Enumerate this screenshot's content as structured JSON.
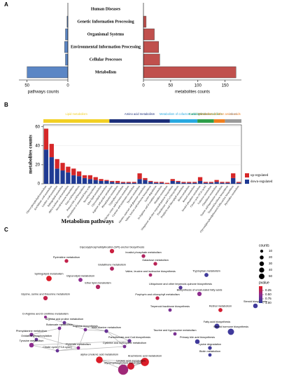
{
  "chart_data": [
    {
      "type": "mirror_bar",
      "panel": "A",
      "categories": [
        "Human Diseases",
        "Genetic Information Processing",
        "Organismal Systems",
        "Environmental Information Processing",
        "Cellular Processes",
        "Metabolism"
      ],
      "left": {
        "xlabel": "pathways counts",
        "values": [
          0,
          1,
          3,
          4,
          3,
          50
        ],
        "xlim": [
          60,
          0
        ],
        "xticks": [
          50,
          0
        ],
        "color": "#5b86c5"
      },
      "right": {
        "xlabel": "metabolites counts",
        "values": [
          0,
          5,
          20,
          28,
          30,
          170
        ],
        "xlim": [
          0,
          180
        ],
        "xticks": [
          0,
          50,
          100,
          150
        ],
        "color": "#c0504d"
      }
    },
    {
      "type": "grouped_stacked_bar",
      "panel": "B",
      "ylabel": "metabolites counts",
      "xlabel": "Metabolism pathways",
      "ylim": [
        0,
        62
      ],
      "yticks": [
        0,
        20,
        40,
        60
      ],
      "series": [
        {
          "name": "up-regulated",
          "color": "#d62728"
        },
        {
          "name": "down-regulated",
          "color": "#1f3a93"
        }
      ],
      "groups": [
        {
          "name": "Lipid metabolism",
          "color": "#f2d024",
          "categories": [
            "Glycerophospholipid metabolism",
            "Arachidonic acid metabolism",
            "Linoleic acid metabolism",
            "Sphingolipid metabolism",
            "alpha-Linolenic acid metabolism",
            "Steroid hormone biosynthesis",
            "Fatty acid biosynthesis",
            "Primary bile acid biosynthesis",
            "Biosynthesis of unsaturated fatty acids",
            "Steroid biosynthesis",
            "Ether lipid metabolism",
            "Glycerolipid metabolism"
          ],
          "up": [
            22,
            14,
            10,
            8,
            6,
            7,
            5,
            3,
            4,
            3,
            2,
            1
          ],
          "down": [
            36,
            28,
            16,
            14,
            12,
            9,
            8,
            6,
            5,
            4,
            3,
            3
          ]
        },
        {
          "name": "Amino acid metabolism",
          "color": "#1c2f7a",
          "categories": [
            "Arginine and proline metabolism",
            "Phenylalanine metabolism",
            "Tryptophan metabolism",
            "Glycine, serine and threonine metabolism",
            "Cysteine and methionine metabolism",
            "Tyrosine metabolism",
            "Alanine, aspartate and glutamate metabolism",
            "Valine, leucine and isoleucine biosynthesis",
            "Lysine degradation",
            "D-Arginine and D-ornithine metabolism",
            "Histidine metabolism"
          ],
          "up": [
            1,
            2,
            1,
            1,
            1,
            6,
            2,
            1,
            1,
            1,
            1
          ],
          "down": [
            2,
            1,
            1,
            1,
            1,
            5,
            4,
            2,
            1,
            1,
            0
          ]
        },
        {
          "name": "Metabolism of cofactors and vitamins",
          "color": "#29a9e0",
          "categories": [
            "Ubiquinone and other terpenoid-quinone biosynthesis",
            "Pantothenate and CoA biosynthesis",
            "Porphyrin and chlorophyll metabolism",
            "Biotin metabolism",
            "Retinol metabolism"
          ],
          "up": [
            2,
            1,
            1,
            1,
            1
          ],
          "down": [
            3,
            2,
            1,
            1,
            1
          ]
        },
        {
          "name": "Carbohydrate metabolism",
          "color": "#2e9e4a",
          "categories": [
            "Inositol phosphate metabolism",
            "Citrate cycle (TCA cycle)",
            "Galactose metabolism"
          ],
          "up": [
            4,
            1,
            1
          ],
          "down": [
            3,
            1,
            1
          ]
        },
        {
          "name": "Metabolism of other amino acids",
          "color": "#f07f1f",
          "categories": [
            "Glutathione metabolism",
            "Taurine and hypotaurine metabolism"
          ],
          "up": [
            2,
            1
          ],
          "down": [
            2,
            1
          ]
        },
        {
          "name": "others",
          "color": "#9a9a9a",
          "categories": [
            "Terpenoid backbone biosynthesis",
            "Glycosylphosphatidylinositol (GPI)-anchor biosynthesis",
            "Pyrimidine metabolism"
          ],
          "up": [
            1,
            5,
            1
          ],
          "down": [
            1,
            6,
            1
          ]
        }
      ]
    },
    {
      "type": "network",
      "panel": "C",
      "size_legend": {
        "title": "counts",
        "values": [
          10,
          20,
          30,
          40,
          50
        ]
      },
      "color_legend": {
        "title": "pvalue",
        "ticks": [
          0.25,
          {
            "value": 0.5,
            "label": "0.50"
          },
          0.75,
          {
            "value": 1,
            "label": "1.00"
          }
        ]
      },
      "nodes": [
        {
          "label": "Glycosylphosphatidylinositol (GPI)-anchor biosynthesis",
          "counts": 5,
          "pvalue": 0.15
        },
        {
          "label": "Inositol phosphate metabolism",
          "counts": 3,
          "pvalue": 0.3
        },
        {
          "label": "Pyrimidine metabolism",
          "counts": 3,
          "pvalue": 0.2
        },
        {
          "label": "Galactose metabolism",
          "counts": 3,
          "pvalue": 0.25
        },
        {
          "label": "Glutathione metabolism",
          "counts": 4,
          "pvalue": 0.3
        },
        {
          "label": "Sphingolipid metabolism",
          "counts": 10,
          "pvalue": 0.05
        },
        {
          "label": "Glycerolipid metabolism",
          "counts": 4,
          "pvalue": 0.5
        },
        {
          "label": "Valine, leucine and isoleucine biosynthesis",
          "counts": 2,
          "pvalue": 0.35
        },
        {
          "label": "Tryptophan metabolism",
          "counts": 4,
          "pvalue": 0.9
        },
        {
          "label": "Ether lipid metabolism",
          "counts": 5,
          "pvalue": 0.3
        },
        {
          "label": "Ubiquinone and other terpenoid-quinone biosynthesis",
          "counts": 3,
          "pvalue": 0.8
        },
        {
          "label": "Biosynthesis of unsaturated fatty acids",
          "counts": 5,
          "pvalue": 0.5
        },
        {
          "label": "Porphyrin and chlorophyll metabolism",
          "counts": 3,
          "pvalue": 0.2
        },
        {
          "label": "Glycine, serine and threonine metabolism",
          "counts": 5,
          "pvalue": 0.2
        },
        {
          "label": "Steroid biosynthesis",
          "counts": 6,
          "pvalue": 0.9
        },
        {
          "label": "Terpenoid backbone biosynthesis",
          "counts": 2,
          "pvalue": 0.6
        },
        {
          "label": "Retinol metabolism",
          "counts": 4,
          "pvalue": 0.1
        },
        {
          "label": "D-Arginine and D-ornithine metabolism",
          "counts": 1,
          "pvalue": 0.5
        },
        {
          "label": "Arginine and proline metabolism",
          "counts": 2,
          "pvalue": 0.7
        },
        {
          "label": "Fatty acid biosynthesis",
          "counts": 8,
          "pvalue": 0.9
        },
        {
          "label": "Steroid hormone biosynthesis",
          "counts": 15,
          "pvalue": 0.9
        },
        {
          "label": "Taurine and hypotaurine metabolism",
          "counts": 2,
          "pvalue": 0.6
        },
        {
          "label": "Primary bile acid biosynthesis",
          "counts": 6,
          "pvalue": 0.9
        },
        {
          "label": "Lysine degradation",
          "counts": 3,
          "pvalue": 0.9
        },
        {
          "label": "Biotin metabolism",
          "counts": 2,
          "pvalue": 0.9
        },
        {
          "label": "Butanoate metabolism",
          "counts": 2,
          "pvalue": 0.6
        },
        {
          "label": "Arginine biosynthesis",
          "counts": 2,
          "pvalue": 0.6
        },
        {
          "label": "Phenylalanine metabolism",
          "counts": 3,
          "pvalue": 0.6
        },
        {
          "label": "Oxidative phosphorylation",
          "counts": 2,
          "pvalue": 0.7
        },
        {
          "label": "Tyrosine metabolism",
          "counts": 6,
          "pvalue": 0.5
        },
        {
          "label": "beta-Alanine metabolism",
          "counts": 3,
          "pvalue": 0.7
        },
        {
          "label": "Pantothenate and CoA biosynthesis",
          "counts": 3,
          "pvalue": 0.7
        },
        {
          "label": "Cysteine and methionine metabolism",
          "counts": 2,
          "pvalue": 0.6
        },
        {
          "label": "Citrate cycle (TCA cycle)",
          "counts": 2,
          "pvalue": 0.7
        },
        {
          "label": "Pyruvate metabolism",
          "counts": 2,
          "pvalue": 0.5
        },
        {
          "label": "alpha-Linolenic acid metabolism",
          "counts": 18,
          "pvalue": 0.05
        },
        {
          "label": "Arachidonic acid metabolism",
          "counts": 30,
          "pvalue": 0.05
        },
        {
          "label": "Linoleic acid metabolism",
          "counts": 20,
          "pvalue": 0.1
        },
        {
          "label": "Glycerophospholipid metabolism",
          "counts": 50,
          "pvalue": 0.4
        }
      ]
    }
  ]
}
